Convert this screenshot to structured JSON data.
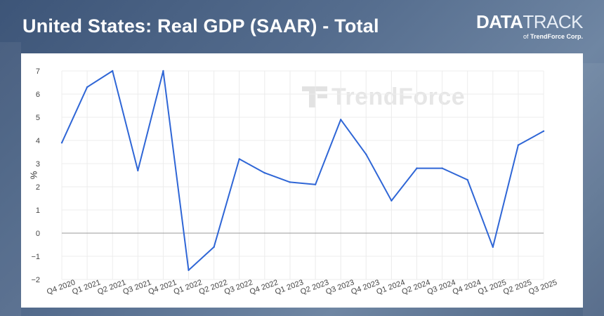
{
  "header": {
    "title": "United States: Real GDP (SAAR) - Total"
  },
  "brand": {
    "name_bold": "DATA",
    "name_light": "TRACK",
    "sub_prefix": "of",
    "sub_company": "TrendForce Corp."
  },
  "watermark": {
    "text": "TrendForce"
  },
  "colors": {
    "line": "#2f66d6",
    "zero_line": "#9a9a9a",
    "grid": "#ececec"
  },
  "chart_data": {
    "type": "line",
    "title": "United States: Real GDP (SAAR) - Total",
    "xlabel": "",
    "ylabel": "%",
    "ylim": [
      -2,
      7
    ],
    "yticks": [
      "7",
      "6",
      "5",
      "4",
      "3",
      "2",
      "1",
      "0",
      "−1",
      "−2"
    ],
    "grid": true,
    "categories": [
      "Q4 2020",
      "Q1 2021",
      "Q2 2021",
      "Q3 2021",
      "Q4 2021",
      "Q1 2022",
      "Q2 2022",
      "Q3 2022",
      "Q4 2022",
      "Q1 2023",
      "Q2 2023",
      "Q3 2023",
      "Q4 2023",
      "Q1 2024",
      "Q2 2024",
      "Q3 2024",
      "Q4 2024",
      "Q1 2025",
      "Q2 2025",
      "Q3 2025"
    ],
    "series": [
      {
        "values": [
          3.9,
          6.3,
          7.0,
          2.7,
          7.0,
          -1.6,
          -0.6,
          3.2,
          2.6,
          2.2,
          2.1,
          4.9,
          3.4,
          1.4,
          2.8,
          2.8,
          2.3,
          -0.6,
          3.8,
          4.4
        ]
      }
    ]
  }
}
